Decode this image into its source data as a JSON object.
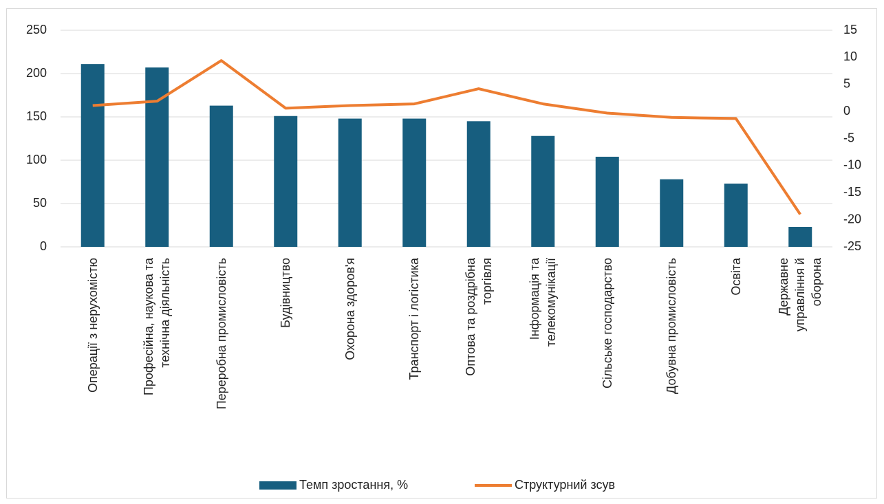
{
  "chart_data": {
    "type": "bar-line",
    "categories": [
      "Операції з нерухомістю",
      "Професійна, наукова та\nтехнічна діяльність",
      "Переробна промисловість",
      "Будівництво",
      "Охорона здоров'я",
      "Транспорт і логістика",
      "Оптова та роздрібна\nторгівля",
      "Інформація та\nтелекомунікації",
      "Сільське господарство",
      "Добувна промисловість",
      "Освіта",
      "Державне управління й\nоборона"
    ],
    "series": [
      {
        "name": "Темп зростання, %",
        "type": "bar",
        "color": "#175e7f",
        "values": [
          211,
          207,
          163,
          151,
          148,
          148,
          145,
          128,
          104,
          78,
          73,
          23
        ]
      },
      {
        "name": "Структурний зсув",
        "type": "line",
        "axis": "y2",
        "color": "#ed7d31",
        "values": [
          1.1,
          1.9,
          9.4,
          0.6,
          1.1,
          1.4,
          4.2,
          1.4,
          -0.3,
          -1.1,
          -1.3,
          -19
        ]
      }
    ],
    "ylim": [
      0,
      250
    ],
    "yticks": [
      0,
      50,
      100,
      150,
      200,
      250
    ],
    "y2lim": [
      -25,
      15
    ],
    "y2ticks": [
      -25,
      -20,
      -15,
      -10,
      -5,
      0,
      5,
      10,
      15
    ],
    "grid": true,
    "legend": "bottom"
  }
}
